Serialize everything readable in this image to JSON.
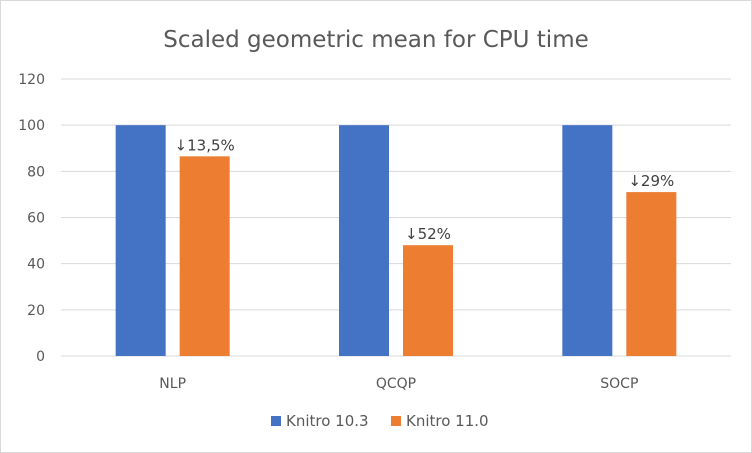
{
  "chart_data": {
    "type": "bar",
    "title": "Scaled geometric mean for CPU time",
    "categories": [
      "NLP",
      "QCQP",
      "SOCP"
    ],
    "series": [
      {
        "name": "Knitro 10.3",
        "values": [
          100,
          100,
          100
        ],
        "color": "#4472c4"
      },
      {
        "name": "Knitro 11.0",
        "values": [
          86.5,
          48,
          71
        ],
        "color": "#ed7d31"
      }
    ],
    "data_labels": [
      "↓13,5%",
      "↓52%",
      "↓29%"
    ],
    "yticks": [
      "0",
      "20",
      "40",
      "60",
      "80",
      "100",
      "120"
    ],
    "ylim": [
      0,
      120
    ],
    "grid": true,
    "legend_position": "bottom"
  }
}
